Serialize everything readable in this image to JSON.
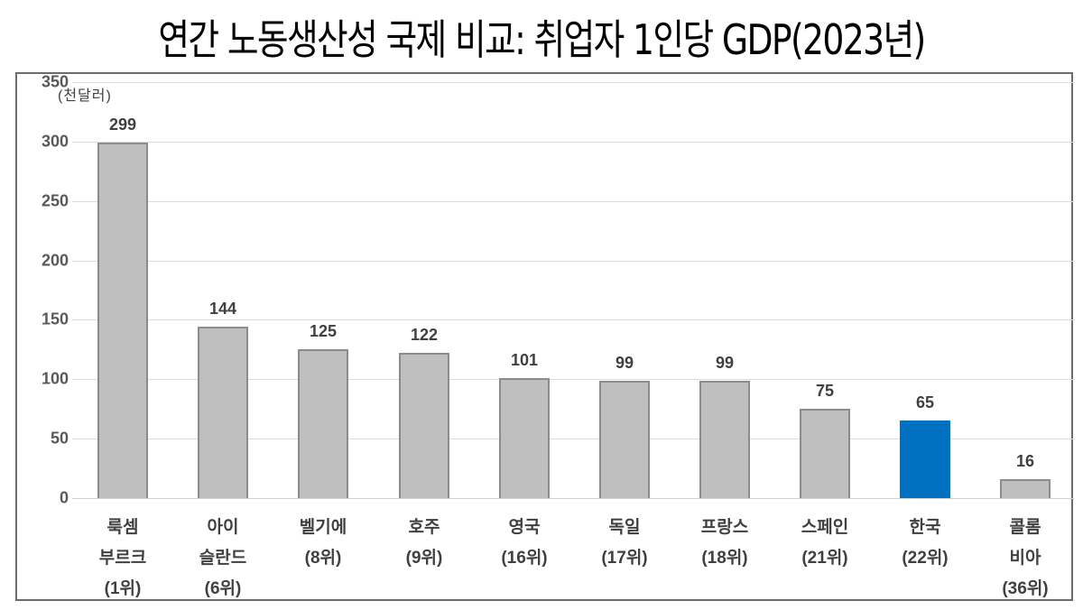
{
  "title": "연간 노동생산성 국제 비교: 취업자 1인당 GDP(2023년)",
  "unit_label": "(천달러)",
  "colors": {
    "bar_default": "#bfbfbf",
    "bar_border": "#8c8c8c",
    "bar_highlight": "#0070c0",
    "gridline": "#dcdcdc",
    "frame": "#6b6b6b"
  },
  "y_ticks": [
    "0",
    "50",
    "100",
    "150",
    "200",
    "250",
    "300",
    "350"
  ],
  "bars": [
    {
      "value": "299",
      "line1": "룩셈",
      "line2": "부르크",
      "line3": "(1위)"
    },
    {
      "value": "144",
      "line1": "아이",
      "line2": "슬란드",
      "line3": "(6위)"
    },
    {
      "value": "125",
      "line1": "벨기에",
      "line2": "(8위)",
      "line3": ""
    },
    {
      "value": "122",
      "line1": "호주",
      "line2": "(9위)",
      "line3": ""
    },
    {
      "value": "101",
      "line1": "영국",
      "line2": "(16위)",
      "line3": ""
    },
    {
      "value": "99",
      "line1": "독일",
      "line2": "(17위)",
      "line3": ""
    },
    {
      "value": "99",
      "line1": "프랑스",
      "line2": "(18위)",
      "line3": ""
    },
    {
      "value": "75",
      "line1": "스페인",
      "line2": "(21위)",
      "line3": ""
    },
    {
      "value": "65",
      "line1": "한국",
      "line2": "(22위)",
      "line3": ""
    },
    {
      "value": "16",
      "line1": "콜롬",
      "line2": "비아",
      "line3": "(36위)"
    }
  ],
  "chart_data": {
    "type": "bar",
    "title": "연간 노동생산성 국제 비교: 취업자 1인당 GDP(2023년)",
    "categories": [
      "룩셈부르크(1위)",
      "아이슬란드(6위)",
      "벨기에(8위)",
      "호주(9위)",
      "영국(16위)",
      "독일(17위)",
      "프랑스(18위)",
      "스페인(21위)",
      "한국(22위)",
      "콜롬비아(36위)"
    ],
    "values": [
      299,
      144,
      125,
      122,
      101,
      99,
      99,
      75,
      65,
      16
    ],
    "highlight": "한국(22위)",
    "xlabel": "",
    "ylabel": "(천달러)",
    "ylim": [
      0,
      350
    ],
    "yticks": [
      0,
      50,
      100,
      150,
      200,
      250,
      300,
      350
    ],
    "grid": true,
    "legend": "none",
    "data_labels": true
  }
}
